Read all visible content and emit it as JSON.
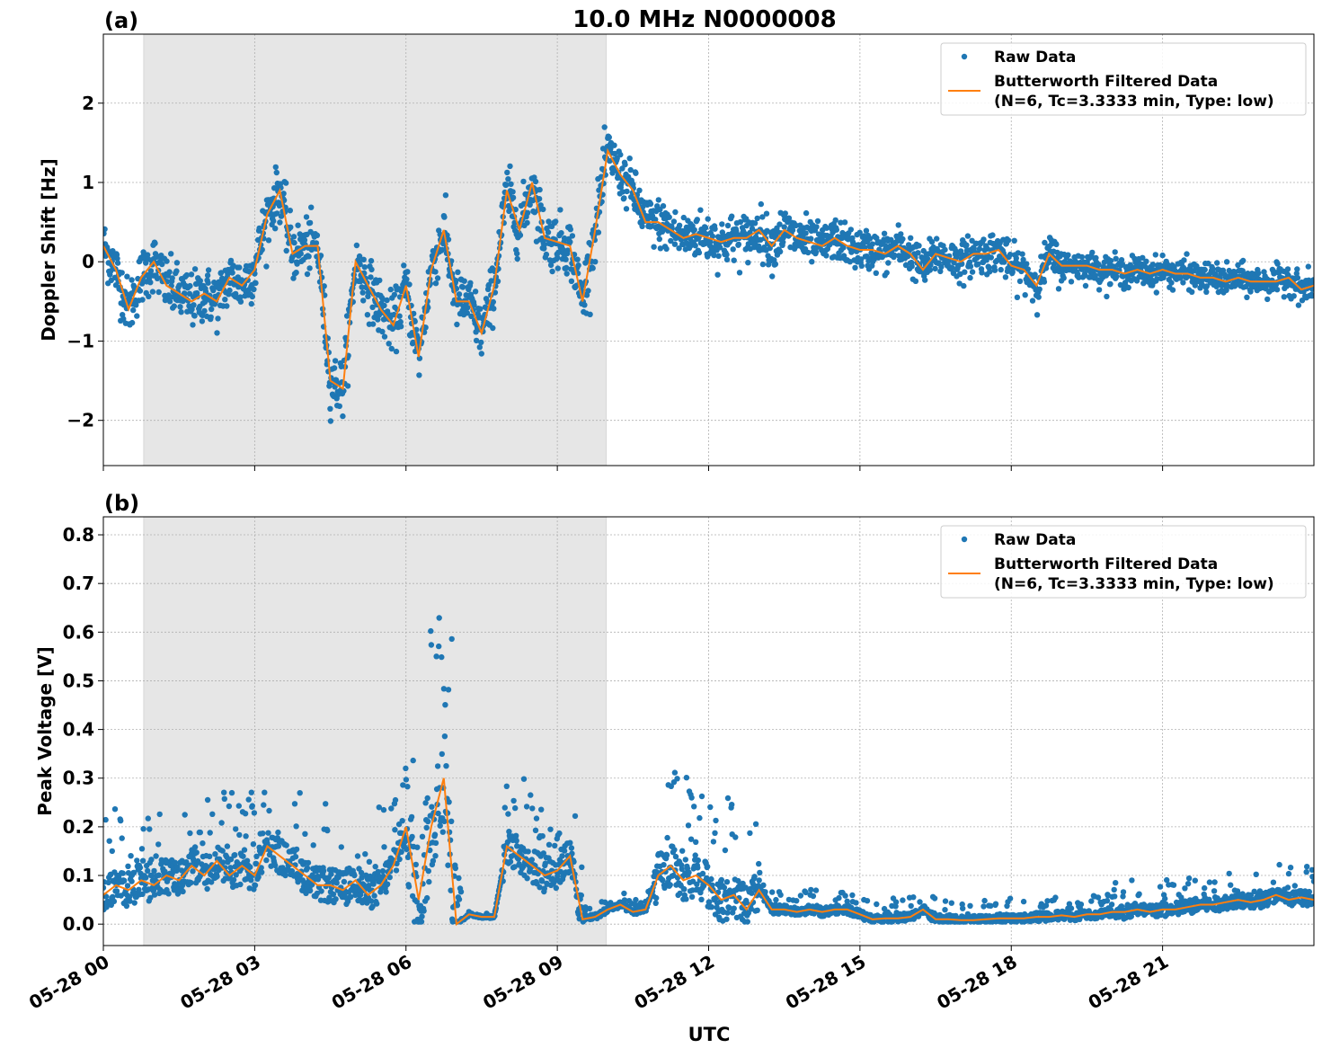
{
  "figure_title": "10.0 MHz N0000008",
  "xlabel": "UTC",
  "x_tick_labels": [
    "05-28 00",
    "05-28 03",
    "05-28 06",
    "05-28 09",
    "05-28 12",
    "05-28 15",
    "05-28 18",
    "05-28 21"
  ],
  "chart_data": [
    {
      "panel_label": "(a)",
      "type": "scatter+line",
      "ylabel": "Doppler Shift [Hz]",
      "xlim_hours": [
        0,
        24
      ],
      "ylim": [
        -2.57,
        2.87
      ],
      "y_ticks": [
        -2,
        -1,
        0,
        1,
        2
      ],
      "y_tick_labels": [
        "−2",
        "−1",
        "0",
        "1",
        "2"
      ],
      "grid": true,
      "shaded_interval_hours": [
        0.8,
        9.97
      ],
      "legend_position": "top-right",
      "legend": {
        "raw": "Raw Data",
        "filtered_line1": "Butterworth Filtered Data",
        "filtered_line2": "(N=6, Tc=3.3333 min, Type: low)"
      },
      "colors": {
        "raw": "#1f77b4",
        "filtered": "#ff7f0e",
        "shade": "#e6e6e6"
      },
      "x_step_hours": 0.25,
      "filtered": [
        0.2,
        -0.1,
        -0.6,
        -0.2,
        0.0,
        -0.3,
        -0.4,
        -0.5,
        -0.4,
        -0.5,
        -0.2,
        -0.3,
        -0.1,
        0.6,
        0.9,
        0.1,
        0.2,
        0.2,
        -1.5,
        -1.6,
        0.0,
        -0.3,
        -0.6,
        -0.8,
        -0.3,
        -1.2,
        -0.1,
        0.4,
        -0.5,
        -0.5,
        -0.9,
        -0.3,
        0.9,
        0.4,
        1.0,
        0.3,
        0.25,
        0.2,
        -0.5,
        0.4,
        1.4,
        1.1,
        0.9,
        0.5,
        0.5,
        0.4,
        0.3,
        0.35,
        0.3,
        0.25,
        0.3,
        0.3,
        0.4,
        0.2,
        0.4,
        0.3,
        0.25,
        0.2,
        0.3,
        0.2,
        0.15,
        0.15,
        0.1,
        0.2,
        0.1,
        -0.1,
        0.1,
        0.05,
        0.0,
        0.1,
        0.1,
        0.15,
        -0.05,
        -0.1,
        -0.3,
        0.1,
        -0.05,
        -0.05,
        -0.05,
        -0.1,
        -0.1,
        -0.15,
        -0.1,
        -0.15,
        -0.1,
        -0.15,
        -0.15,
        -0.2,
        -0.2,
        -0.25,
        -0.2,
        -0.25,
        -0.25,
        -0.25,
        -0.2,
        -0.35,
        -0.3
      ],
      "raw_spread": [
        {
          "from": 0,
          "to": 10,
          "spread": 0.35
        },
        {
          "from": 10,
          "to": 14,
          "spread": 0.3
        },
        {
          "from": 14,
          "to": 19,
          "spread": 0.25
        },
        {
          "from": 19,
          "to": 24,
          "spread": 0.18
        }
      ]
    },
    {
      "panel_label": "(b)",
      "type": "scatter+line",
      "ylabel": "Peak Voltage [V]",
      "xlim_hours": [
        0,
        24
      ],
      "ylim": [
        -0.044,
        0.837
      ],
      "y_ticks": [
        0.0,
        0.1,
        0.2,
        0.3,
        0.4,
        0.5,
        0.6,
        0.7,
        0.8
      ],
      "y_tick_labels": [
        "0.0",
        "0.1",
        "0.2",
        "0.3",
        "0.4",
        "0.5",
        "0.6",
        "0.7",
        "0.8"
      ],
      "grid": true,
      "shaded_interval_hours": [
        0.8,
        9.97
      ],
      "legend_position": "top-right",
      "legend": {
        "raw": "Raw Data",
        "filtered_line1": "Butterworth Filtered Data",
        "filtered_line2": "(N=6, Tc=3.3333 min, Type: low)"
      },
      "colors": {
        "raw": "#1f77b4",
        "filtered": "#ff7f0e",
        "shade": "#e6e6e6"
      },
      "x_step_hours": 0.25,
      "filtered": [
        0.06,
        0.08,
        0.07,
        0.09,
        0.08,
        0.1,
        0.09,
        0.12,
        0.1,
        0.13,
        0.1,
        0.12,
        0.1,
        0.16,
        0.14,
        0.12,
        0.1,
        0.08,
        0.08,
        0.07,
        0.09,
        0.06,
        0.08,
        0.12,
        0.2,
        0.05,
        0.2,
        0.3,
        0.0,
        0.02,
        0.015,
        0.015,
        0.16,
        0.14,
        0.12,
        0.1,
        0.11,
        0.14,
        0.01,
        0.015,
        0.03,
        0.04,
        0.025,
        0.03,
        0.1,
        0.12,
        0.09,
        0.1,
        0.08,
        0.05,
        0.06,
        0.03,
        0.07,
        0.03,
        0.03,
        0.025,
        0.03,
        0.025,
        0.03,
        0.03,
        0.02,
        0.01,
        0.012,
        0.012,
        0.015,
        0.03,
        0.01,
        0.01,
        0.008,
        0.008,
        0.01,
        0.012,
        0.012,
        0.012,
        0.015,
        0.015,
        0.018,
        0.015,
        0.02,
        0.02,
        0.025,
        0.025,
        0.03,
        0.025,
        0.03,
        0.03,
        0.035,
        0.04,
        0.04,
        0.045,
        0.05,
        0.045,
        0.05,
        0.06,
        0.05,
        0.055,
        0.05
      ],
      "raw_spread": [
        {
          "from": 0,
          "to": 6,
          "spread": 0.12
        },
        {
          "from": 6,
          "to": 7.1,
          "spread": 0.35
        },
        {
          "from": 7.1,
          "to": 7.9,
          "spread": 0.01
        },
        {
          "from": 7.9,
          "to": 9.5,
          "spread": 0.12
        },
        {
          "from": 9.5,
          "to": 10.9,
          "spread": 0.02
        },
        {
          "from": 10.9,
          "to": 13.0,
          "spread": 0.15
        },
        {
          "from": 13,
          "to": 20,
          "spread": 0.03
        },
        {
          "from": 20,
          "to": 24,
          "spread": 0.05
        }
      ]
    }
  ]
}
